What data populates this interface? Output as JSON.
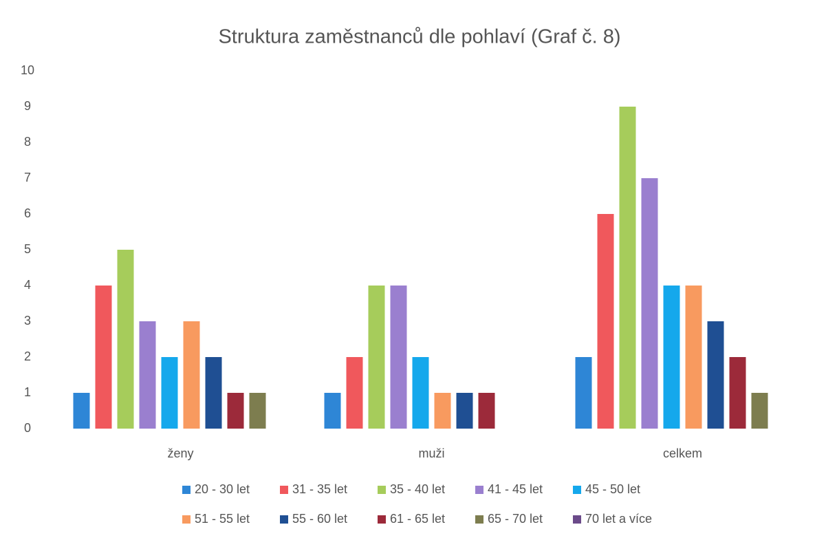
{
  "chart_data": {
    "type": "bar",
    "title": "Struktura zaměstnanců dle pohlaví (Graf č. 8)",
    "categories": [
      "ženy",
      "muži",
      "celkem"
    ],
    "series": [
      {
        "name": "20 - 30 let",
        "color": "#2e86d6",
        "values": [
          1,
          1,
          2
        ]
      },
      {
        "name": "31 - 35 let",
        "color": "#f0585c",
        "values": [
          4,
          2,
          6
        ]
      },
      {
        "name": "35 - 40 let",
        "color": "#a6cc5b",
        "values": [
          5,
          4,
          9
        ]
      },
      {
        "name": "41 - 45 let",
        "color": "#9a7fcf",
        "values": [
          3,
          4,
          7
        ]
      },
      {
        "name": "45 - 50 let",
        "color": "#15a8ec",
        "values": [
          2,
          2,
          4
        ]
      },
      {
        "name": "51 - 55 let",
        "color": "#f89a5f",
        "values": [
          3,
          1,
          4
        ]
      },
      {
        "name": "55 - 60 let",
        "color": "#1f4f93",
        "values": [
          2,
          1,
          3
        ]
      },
      {
        "name": "61 - 65 let",
        "color": "#9c2a3a",
        "values": [
          1,
          1,
          2
        ]
      },
      {
        "name": "65 - 70 let",
        "color": "#7d7d4f",
        "values": [
          1,
          0,
          1
        ]
      },
      {
        "name": "70 let a více",
        "color": "#6b4a8a",
        "values": [
          0,
          0,
          0
        ]
      }
    ],
    "ylim": [
      0,
      10
    ],
    "yticks": [
      0,
      1,
      2,
      3,
      4,
      5,
      6,
      7,
      8,
      9,
      10
    ],
    "grid": false,
    "legend": "bottom"
  }
}
